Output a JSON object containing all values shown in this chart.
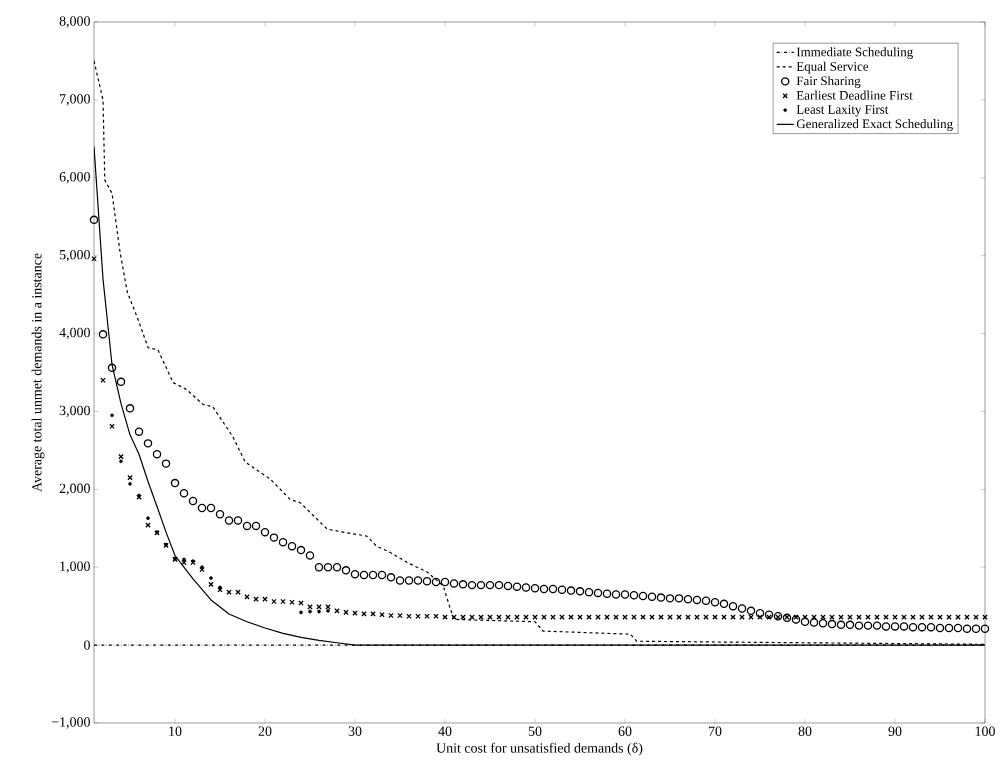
{
  "chart_data": {
    "type": "line",
    "xlabel": "Unit cost for unsatisfied demands (δ)",
    "ylabel": "Average total unmet demands in a instance",
    "xlim": [
      1,
      100
    ],
    "xticks": [
      10,
      20,
      30,
      40,
      50,
      60,
      70,
      80,
      90,
      100
    ],
    "ylim": [
      -1000,
      8000
    ],
    "yticks": [
      {
        "value": -1000,
        "label": "−1,000"
      },
      0,
      {
        "value": 1000,
        "label": "1,000"
      },
      {
        "value": 2000,
        "label": "2,000"
      },
      {
        "value": 3000,
        "label": "3,000"
      },
      {
        "value": 4000,
        "label": "4,000"
      },
      {
        "value": 5000,
        "label": "5,000"
      },
      {
        "value": 6000,
        "label": "6,000"
      },
      {
        "value": 7000,
        "label": "7,000"
      },
      {
        "value": 8000,
        "label": "8,000"
      }
    ],
    "grid": false,
    "legend": "top right",
    "series": [
      {
        "name": "Immediate Scheduling",
        "line_style": "dashdotted",
        "marker": "none",
        "color": "#000000",
        "x": [
          1,
          100
        ],
        "values": [
          0,
          0
        ]
      },
      {
        "name": "Equal Service",
        "line_style": "dashed",
        "marker": "none",
        "color": "#000000",
        "x": [
          1,
          2,
          2.2,
          3,
          3.9,
          4.7,
          5.9,
          7,
          8.1,
          9.8,
          11.3,
          13.1,
          14.2,
          16.4,
          17.8,
          20.6,
          22.8,
          23.9,
          26.9,
          28.7,
          31.3,
          32.4,
          33.9,
          35.8,
          38,
          39.8,
          40.5,
          41,
          50,
          50.9,
          60.6,
          61.3,
          70,
          80,
          90,
          100
        ],
        "values": [
          7500,
          7000,
          5970,
          5800,
          5040,
          4530,
          4180,
          3820,
          3790,
          3370,
          3280,
          3090,
          3060,
          2680,
          2350,
          2130,
          1870,
          1830,
          1490,
          1450,
          1400,
          1270,
          1190,
          1060,
          940,
          760,
          500,
          330,
          300,
          180,
          140,
          50,
          40,
          30,
          20,
          10
        ]
      },
      {
        "name": "Fair Sharing",
        "type": "scatter",
        "marker": "circle",
        "color": "#000000",
        "x": [
          1,
          2,
          3,
          4,
          5,
          6,
          7,
          8,
          9,
          10,
          11,
          12,
          13,
          14,
          15,
          16,
          17,
          18,
          19,
          20,
          21,
          22,
          23,
          24,
          25,
          26,
          27,
          28,
          29,
          30,
          31,
          32,
          33,
          34,
          35,
          36,
          37,
          38,
          39,
          40,
          41,
          42,
          43,
          44,
          45,
          46,
          47,
          48,
          49,
          50,
          51,
          52,
          53,
          54,
          55,
          56,
          57,
          58,
          59,
          60,
          61,
          62,
          63,
          64,
          65,
          66,
          67,
          68,
          69,
          70,
          71,
          72,
          73,
          74,
          75,
          76,
          77,
          78,
          79,
          80,
          81,
          82,
          83,
          84,
          85,
          86,
          87,
          88,
          89,
          90,
          91,
          92,
          93,
          94,
          95,
          96,
          97,
          98,
          99,
          100
        ],
        "values": [
          5460,
          3990,
          3560,
          3380,
          3040,
          2740,
          2590,
          2450,
          2330,
          2080,
          1950,
          1850,
          1760,
          1760,
          1680,
          1600,
          1600,
          1530,
          1530,
          1450,
          1380,
          1320,
          1270,
          1220,
          1150,
          1000,
          1000,
          1000,
          960,
          910,
          900,
          900,
          900,
          870,
          830,
          830,
          830,
          820,
          810,
          810,
          790,
          780,
          770,
          770,
          770,
          770,
          760,
          750,
          740,
          730,
          720,
          720,
          710,
          700,
          690,
          680,
          670,
          660,
          650,
          650,
          640,
          630,
          620,
          610,
          600,
          600,
          590,
          580,
          570,
          550,
          530,
          500,
          470,
          440,
          410,
          390,
          370,
          350,
          330,
          300,
          290,
          280,
          270,
          260,
          260,
          250,
          250,
          250,
          240,
          240,
          240,
          230,
          230,
          230,
          220,
          220,
          220,
          210,
          210,
          210
        ]
      },
      {
        "name": "Earliest Deadline First",
        "type": "scatter",
        "marker": "cross",
        "color": "#000000",
        "x": [
          1,
          2,
          3,
          4,
          5,
          6,
          7,
          8,
          9,
          10,
          11,
          12,
          13,
          14,
          15,
          16,
          17,
          18,
          19,
          20,
          21,
          22,
          23,
          24,
          25,
          26,
          27,
          28,
          29,
          30,
          31,
          32,
          33,
          34,
          35,
          36,
          37,
          38,
          39,
          40,
          41,
          42,
          43,
          44,
          45,
          46,
          47,
          48,
          49,
          50,
          51,
          52,
          53,
          54,
          55,
          56,
          57,
          58,
          59,
          60,
          61,
          62,
          63,
          64,
          65,
          66,
          67,
          68,
          69,
          70,
          71,
          72,
          73,
          74,
          75,
          76,
          77,
          78,
          79,
          80,
          81,
          82,
          83,
          84,
          85,
          86,
          87,
          88,
          89,
          90,
          91,
          92,
          93,
          94,
          95,
          96,
          97,
          98,
          99,
          100
        ],
        "values": [
          4960,
          3400,
          2810,
          2420,
          2150,
          1900,
          1540,
          1440,
          1280,
          1100,
          1060,
          1060,
          970,
          780,
          710,
          680,
          680,
          620,
          590,
          590,
          560,
          560,
          550,
          540,
          490,
          490,
          490,
          440,
          420,
          410,
          400,
          400,
          390,
          380,
          380,
          370,
          370,
          370,
          370,
          360,
          360,
          360,
          360,
          360,
          360,
          360,
          360,
          360,
          360,
          360,
          360,
          360,
          360,
          360,
          360,
          360,
          360,
          360,
          360,
          360,
          360,
          360,
          360,
          360,
          360,
          360,
          360,
          360,
          360,
          360,
          360,
          360,
          360,
          360,
          360,
          360,
          360,
          360,
          360,
          360,
          360,
          360,
          360,
          360,
          360,
          360,
          360,
          360,
          360,
          360,
          360,
          360,
          360,
          360,
          360,
          360,
          360,
          360,
          360,
          360
        ]
      },
      {
        "name": "Least Laxity First",
        "type": "scatter",
        "marker": "circle",
        "color": "#000000",
        "x": [
          3,
          4,
          5,
          6,
          7,
          8,
          9,
          10,
          11,
          12,
          13,
          14,
          15,
          24,
          25,
          26,
          27
        ],
        "values": [
          2950,
          2360,
          2070,
          1920,
          1630,
          1450,
          1290,
          1110,
          1100,
          1080,
          1000,
          860,
          740,
          420,
          430,
          430,
          440
        ]
      },
      {
        "name": "Generalized Exact Scheduling",
        "line_style": "solid",
        "marker": "none",
        "color": "#000000",
        "x": [
          1,
          2,
          3,
          4,
          5,
          6,
          7,
          8,
          9,
          10,
          12,
          14,
          16,
          18,
          20,
          22,
          24,
          26,
          28,
          30,
          100
        ],
        "values": [
          6400,
          4700,
          3600,
          3100,
          2700,
          2450,
          2100,
          1780,
          1450,
          1150,
          850,
          580,
          400,
          300,
          220,
          150,
          100,
          60,
          30,
          0,
          0
        ]
      }
    ]
  }
}
